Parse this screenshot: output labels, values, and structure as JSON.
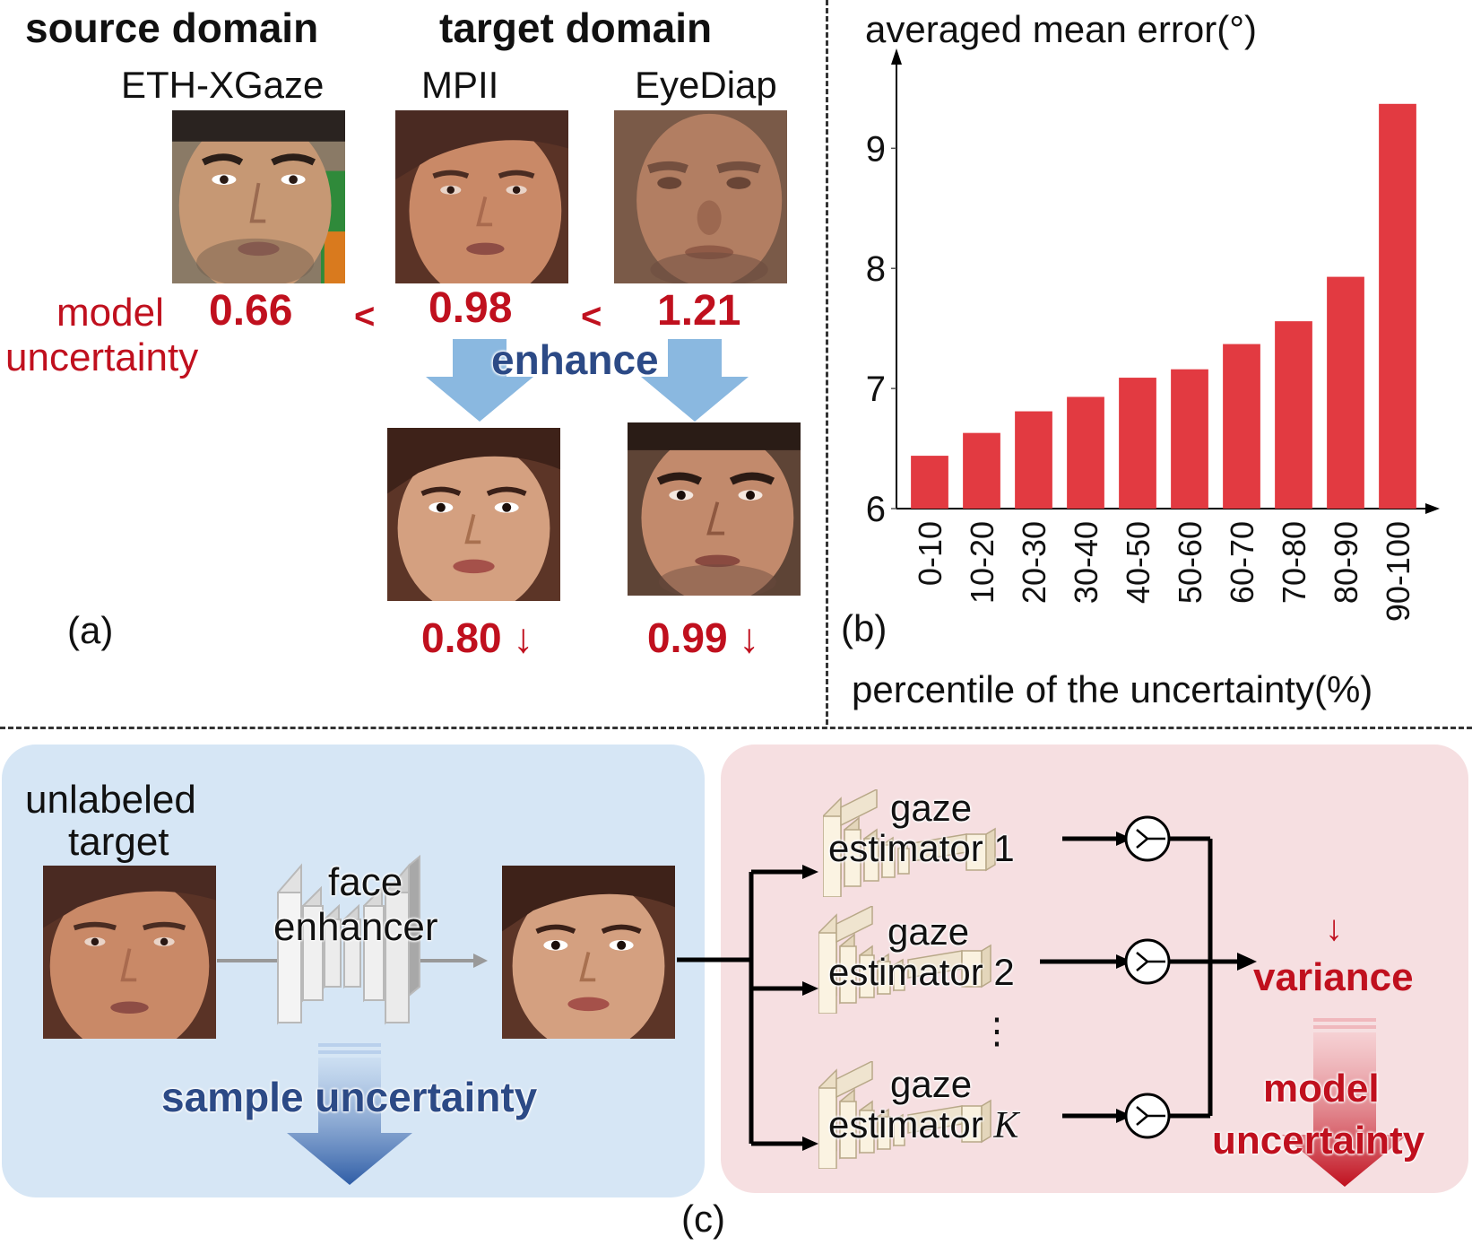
{
  "panel_a": {
    "source_heading": "source domain",
    "target_heading": "target domain",
    "dataset_source": "ETH-XGaze",
    "dataset_target_1": "MPII",
    "dataset_target_2": "EyeDiap",
    "uncertainty_label_line1": "model",
    "uncertainty_label_line2": "uncertainty",
    "value_source": "0.66",
    "less_than_1": "<",
    "value_mpii": "0.98",
    "less_than_2": "<",
    "value_eyediap": "1.21",
    "enhance_label": "enhance",
    "value_mpii_enhanced": "0.80 ↓",
    "value_eyediap_enhanced": "0.99 ↓",
    "caption": "(a)"
  },
  "panel_b": {
    "caption": "(b)"
  },
  "chart_data": {
    "type": "bar",
    "title": "averaged mean error(°)",
    "xlabel": "percentile of the uncertainty(%)",
    "ylabel": "",
    "categories": [
      "0-10",
      "10-20",
      "20-30",
      "30-40",
      "40-50",
      "50-60",
      "60-70",
      "70-80",
      "80-90",
      "90-100"
    ],
    "values": [
      6.44,
      6.63,
      6.81,
      6.93,
      7.09,
      7.16,
      7.37,
      7.56,
      7.93,
      9.37
    ],
    "ylim": [
      6,
      9.6
    ],
    "yticks": [
      "6",
      "7",
      "8",
      "9"
    ],
    "bar_color": "#e23a41",
    "grid": false
  },
  "panel_c": {
    "input_label_line1": "unlabeled",
    "input_label_line2": "target",
    "enhancer_line1": "face",
    "enhancer_line2": "enhancer",
    "sample_uncertainty": "sample uncertainty",
    "estimator_1_line1": "gaze",
    "estimator_1_line2": "estimator 1",
    "estimator_2_line1": "gaze",
    "estimator_2_line2": "estimator 2",
    "estimator_k_line1": "gaze",
    "estimator_k_line2_prefix": "estimator ",
    "estimator_k_line2_var": "K",
    "vertical_dots": "⋮",
    "variance_arrow": "↓",
    "variance_label": "variance",
    "model_uncertainty_line1": "model",
    "model_uncertainty_line2": "uncertainty",
    "caption": "(c)"
  },
  "colors": {
    "accent_red": "#c0101e",
    "arrow_blue": "#8ab8e0",
    "navy_text": "#2c4a86",
    "panel_blue": "#d6e6f5",
    "panel_pink": "#f6dfe1"
  }
}
